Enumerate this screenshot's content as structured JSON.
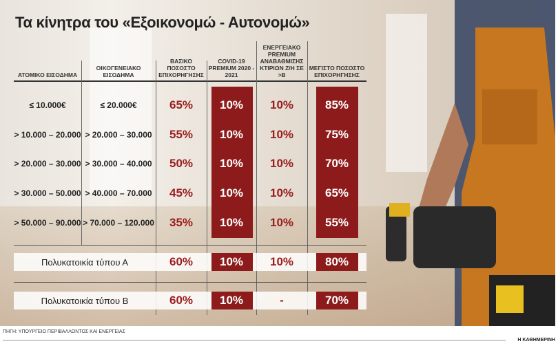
{
  "title": "Τα κίνητρα του «Εξοικονομώ - Αυτονομώ»",
  "headers": [
    "ΑΤΟΜΙΚΟ ΕΙΣΟΔΗΜΑ",
    "ΟΙΚΟΓΕΝΕΙΑΚΟ ΕΙΣΟΔΗΜΑ",
    "ΒΑΣΙΚΟ ΠΟΣΟΣΤΟ ΕΠΙΧΟΡΗΓΗΣΗΣ",
    "COVID-19 PREMIUM 2020 - 2021",
    "ΕΝΕΡΓΕΙΑΚΟ PREMIUM ΑΝΑΒΑΘΜΙΣΗΣ ΚΤΙΡΙΩΝ Ζ/Η ΣΕ >Β",
    "ΜΕΓΙΣΤΟ ΠΟΣΟΣΤΟ ΕΠΙΧΟΡΗΓΗΣΗΣ"
  ],
  "rows": [
    [
      "≤ 10.000€",
      "≤ 20.000€",
      "65%",
      "10%",
      "10%",
      "85%"
    ],
    [
      "> 10.000 – 20.000",
      "> 20.000 – 30.000",
      "55%",
      "10%",
      "10%",
      "75%"
    ],
    [
      "> 20.000 – 30.000",
      "> 30.000 – 40.000",
      "50%",
      "10%",
      "10%",
      "70%"
    ],
    [
      "> 30.000 – 50.000",
      "> 40.000 – 70.000",
      "45%",
      "10%",
      "10%",
      "65%"
    ],
    [
      "> 50.000 – 90.000",
      "> 70.000 – 120.000",
      "35%",
      "10%",
      "10%",
      "55%"
    ]
  ],
  "buildings": [
    [
      "Πολυκατοικία τύπου Α",
      "60%",
      "10%",
      "10%",
      "80%"
    ],
    [
      "Πολυκατοικία τύπου Β",
      "60%",
      "10%",
      "-",
      "70%"
    ]
  ],
  "source": "ΠΗΓΗ: ΥΠΟΥΡΓΕΙΟ ΠΕΡΙΒΑΛΛΟΝΤΟΣ ΚΑΙ ΕΝΕΡΓΕΙΑΣ",
  "brand": "Η ΚΑΘΗΜΕΡΙΝΗ",
  "colors": {
    "accent": "#8e1b1b",
    "background": "#ece6de"
  }
}
